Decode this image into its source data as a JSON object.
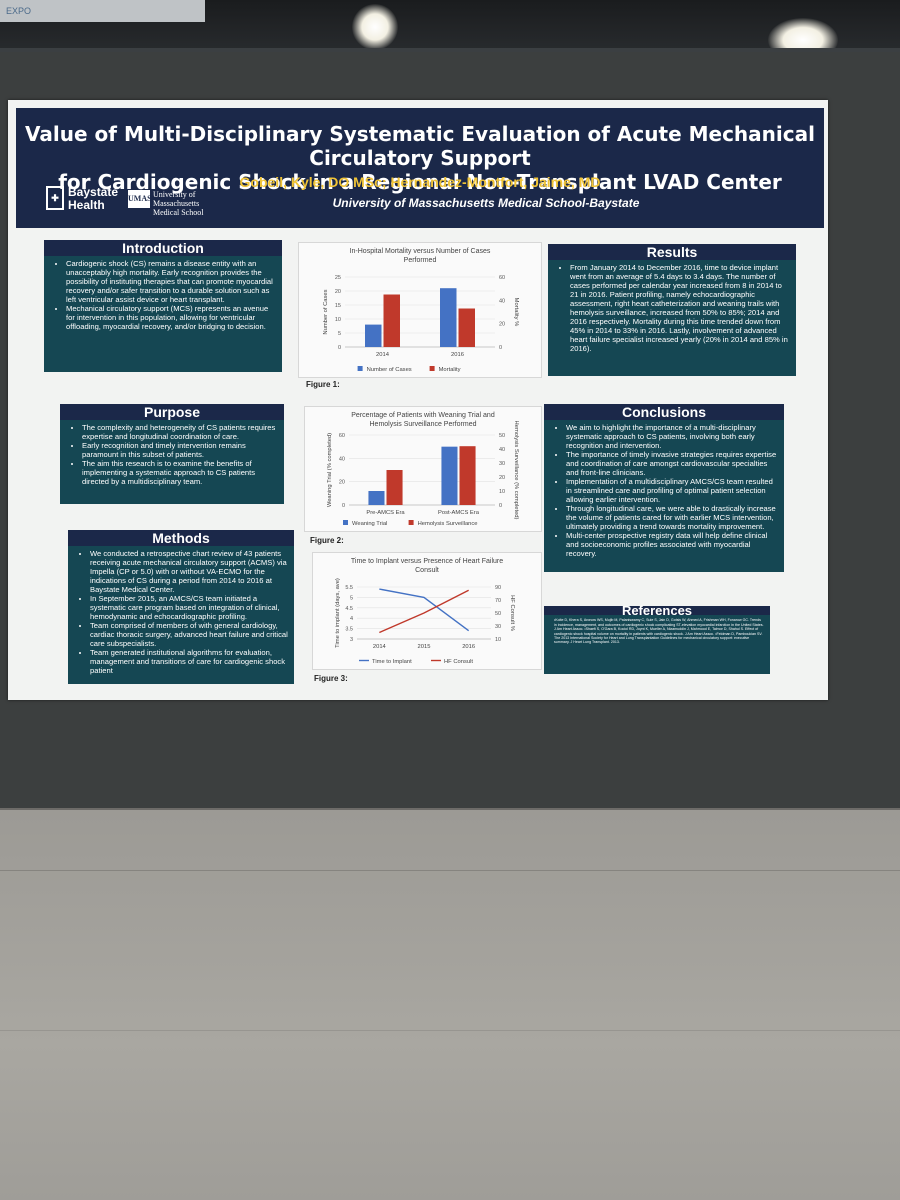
{
  "backdrop": {
    "sign_text": "EXPO"
  },
  "poster": {
    "title_line1": "Value of Multi-Disciplinary Systematic Evaluation of Acute Mechanical Circulatory Support",
    "title_line2": "for Cardiogenic Shock in a Regional Non-Transplant LVAD Center",
    "authors": "Gobeil, Kyle, DO MSc; Hernandez-Montfort, Jaime, MD",
    "affiliation": "University of Massachusetts Medical School-Baystate",
    "logo_baystate_line1": "Baystate",
    "logo_baystate_line2": "Health",
    "logo_umass_mark": "UMASS",
    "logo_umass_line1": "University of",
    "logo_umass_line2": "Massachusetts",
    "logo_umass_line3": "Medical School",
    "introduction": {
      "heading": "Introduction",
      "bullets": [
        "Cardiogenic shock (CS) remains a disease entity with an unacceptably high mortality. Early recognition provides the possibility of instituting therapies that can promote myocardial recovery and/or safer transition to a durable solution such as left ventricular assist device or heart transplant.",
        "Mechanical circulatory support (MCS) represents an avenue for intervention in this population, allowing for ventricular offloading, myocardial recovery, and/or bridging to decision."
      ]
    },
    "purpose": {
      "heading": "Purpose",
      "bullets": [
        "The complexity and heterogeneity of CS patients requires expertise and longitudinal coordination of care.",
        "Early recognition and timely intervention remains paramount in this subset of patients.",
        "The aim this research is to examine the benefits of implementing a systematic approach to CS patients directed by a multidisciplinary team."
      ]
    },
    "methods": {
      "heading": "Methods",
      "bullets": [
        "We conducted a retrospective chart review of 43 patients receiving acute mechanical circulatory support (ACMS) via Impella (CP or 5.0) with or without VA-ECMO for the indications of CS during a period from 2014 to 2016 at Baystate Medical Center.",
        "In September 2015, an AMCS/CS team initiated a systematic care program based on integration of clinical, hemodynamic and echocardiographic profiling.",
        "Team comprised of members of with general cardiology, cardiac thoracic surgery, advanced heart failure and critical care subspecialists.",
        "Team generated institutional algorithms for evaluation, management and transitions of care for cardiogenic shock patient"
      ]
    },
    "results": {
      "heading": "Results",
      "bullets": [
        "From January 2014 to December 2016, time to device implant went from an average of 5.4 days to 3.4 days. The number of cases performed per calendar year increased from 8 in 2014 to 21 in 2016. Patient profiling, namely echocardiographic assessment, right heart catheterization and weaning trails with hemolysis surveillance, increased from 50% to 85%; 2014 and 2016 respectively. Mortality during this time trended down from 45% in 2014 to 33% in 2016. Lastly, involvement of advanced heart failure specialist increased yearly (20% in 2014 and 85% in 2016)."
      ]
    },
    "conclusions": {
      "heading": "Conclusions",
      "bullets": [
        "We aim to highlight the importance of a multi-disciplinary systematic approach to CS patients, involving both early recognition and intervention.",
        "The importance of timely invasive strategies requires expertise and coordination of care amongst cardiovascular specialties and front-line clinicians.",
        "Implementation of a multidisciplinary AMCS/CS team resulted in streamlined care and profiling of optimal patient selection allowing earlier intervention.",
        "Through longitudinal care, we were able to drastically increase the volume of patients cared for with earlier MCS intervention, ultimately providing a trend towards mortality improvement.",
        "Multi-center prospective registry data will help define clinical and socioeconomic profiles associated with myocardial recovery."
      ]
    },
    "references": {
      "heading": "References",
      "text": "•Kolte D, Khera S, Aronow WS, Mujib M, Palaniswamy C, Sule S, Jain D, Gotsis W, Ahmed A, Frishman WH, Fonarow GC. Trends in incidence, management, and outcomes of cardiogenic shock complicating ST-elevation myocardial infarction in the United States. J Am Heart Assoc. •Shaefi S, O'Gara B, Kociol RD, Joynt K, Mueller A, Nizamuddin J, Mahmood E, Talmor D, Shahul S. Effect of cardiogenic shock hospital volume on mortality in patients with cardiogenic shock. J Am Heart Assoc. •Feldman D, Pamboukian SV. The 2013 International Society for Heart and Lung Transplantation Guidelines for mechanical circulatory support: executive summary. J Heart Lung Transplant. 2013."
    }
  },
  "colors": {
    "bar_blue": "#4472c4",
    "bar_red": "#c0392b",
    "banner_navy": "#1b2849",
    "panel_teal": "#154753",
    "author_gold": "#f0c437"
  },
  "chart_data": [
    {
      "type": "bar",
      "title": "In-Hospital Mortality versus Number of Cases Performed",
      "caption": "Figure 1:",
      "categories": [
        "2014",
        "2016"
      ],
      "series": [
        {
          "name": "Number of Cases",
          "axis": "left",
          "values": [
            8,
            21
          ]
        },
        {
          "name": "Mortality",
          "axis": "right",
          "values": [
            45,
            33
          ]
        }
      ],
      "ylabel": "Number of Cases",
      "ylim": [
        0,
        25
      ],
      "yticks": [
        "0",
        "5",
        "10",
        "15",
        "20",
        "25"
      ],
      "y2label": "Mortality %",
      "y2lim": [
        0,
        60
      ],
      "y2ticks": [
        "0",
        "20",
        "40",
        "60"
      ],
      "legend": "bottom"
    },
    {
      "type": "bar",
      "title": "Percentage of Patients with Weaning Trial and Hemolysis Surveillance Performed",
      "caption": "Figure 2:",
      "categories": [
        "Pre-AMCS Era",
        "Post-AMCS Era"
      ],
      "series": [
        {
          "name": "Weaning Trial",
          "axis": "left",
          "values": [
            12,
            50
          ]
        },
        {
          "name": "Hemolysis Surveillance",
          "axis": "right",
          "values": [
            25,
            42
          ]
        }
      ],
      "ylabel": "Weaning Trial (% completed)",
      "ylim": [
        0,
        60
      ],
      "yticks": [
        "0",
        "20",
        "40",
        "60"
      ],
      "y2label": "Hemolysis Surveillance (% completed)",
      "y2lim": [
        0,
        50
      ],
      "y2ticks": [
        "0",
        "10",
        "20",
        "30",
        "40",
        "50"
      ],
      "legend": "bottom"
    },
    {
      "type": "line",
      "title": "Time to Implant versus Presence of Heart Failure Consult",
      "caption": "Figure 3:",
      "x": [
        "2014",
        "2015",
        "2016"
      ],
      "series": [
        {
          "name": "Time to Implant",
          "axis": "left",
          "values": [
            5.4,
            5.0,
            3.4
          ]
        },
        {
          "name": "HF Consult",
          "axis": "right",
          "values": [
            20,
            50,
            85
          ]
        }
      ],
      "ylabel": "Time to implant (days, ave)",
      "ylim": [
        3,
        5.5
      ],
      "yticks": [
        "3",
        "3.5",
        "4",
        "4.5",
        "5",
        "5.5"
      ],
      "y2label": "HF Consult %",
      "y2lim": [
        10,
        90
      ],
      "y2ticks": [
        "10",
        "30",
        "50",
        "70",
        "90"
      ],
      "legend": "bottom"
    }
  ]
}
